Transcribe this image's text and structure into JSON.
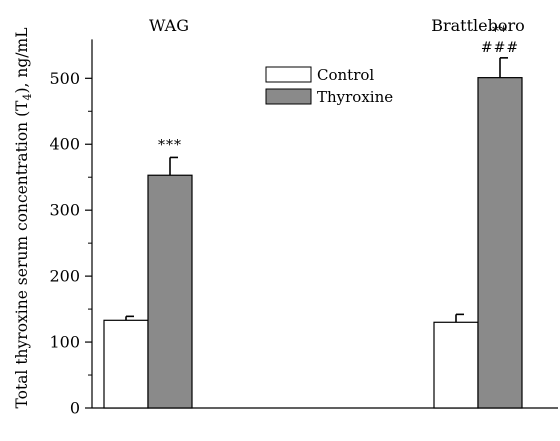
{
  "chart_data": {
    "type": "bar",
    "categories": [
      "WAG",
      "Brattleboro"
    ],
    "series": [
      {
        "name": "Control",
        "values": [
          133,
          130
        ],
        "errors": [
          6,
          12
        ],
        "color": "#ffffff"
      },
      {
        "name": "Thyroxine",
        "values": [
          353,
          501
        ],
        "errors": [
          27,
          30
        ],
        "color": "#8a8a8a"
      }
    ],
    "ylabel": "Total thyroxine serum concentration (T4), ng/mL",
    "xlabel": "",
    "ylim": [
      0,
      550
    ],
    "yticks": [
      0,
      100,
      200,
      300,
      400,
      500
    ],
    "legend_placement": "top-center",
    "grid": false,
    "annotations": [
      {
        "category": "WAG",
        "series": "Thyroxine",
        "lines": [
          "***"
        ]
      },
      {
        "category": "Brattleboro",
        "series": "Thyroxine",
        "lines": [
          "**",
          "###"
        ]
      }
    ]
  }
}
